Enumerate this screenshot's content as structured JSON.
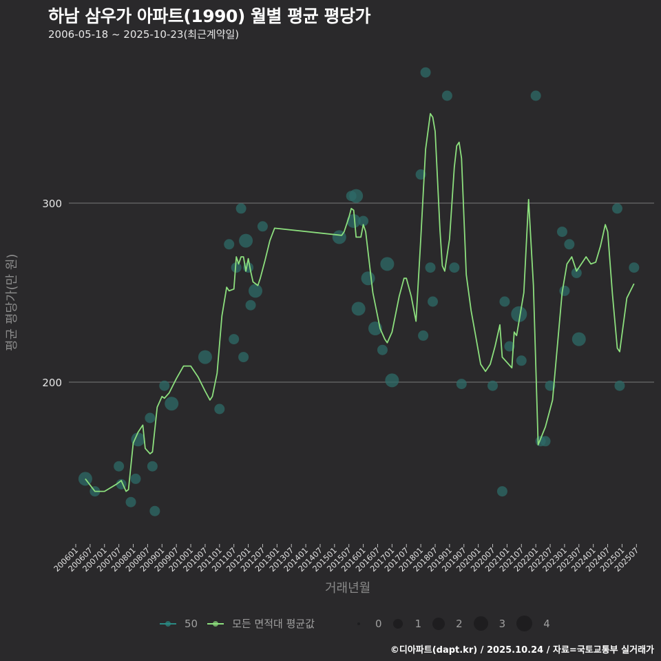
{
  "header": {
    "title": "하남 삼우가 아파트(1990) 월별 평균 평당가",
    "subtitle": "2006-05-18 ~ 2025-10-23(최근계약일)"
  },
  "axes": {
    "xlabel": "거래년월",
    "ylabel": "평균 평당가(만 원)"
  },
  "legend": {
    "series": [
      {
        "label": "50",
        "color": "#2a8a84"
      },
      {
        "label": "모든 면적대 평균값",
        "color": "#8de07e"
      }
    ],
    "sizes": [
      {
        "label": "0",
        "d": 4
      },
      {
        "label": "1",
        "d": 14
      },
      {
        "label": "2",
        "d": 18
      },
      {
        "label": "3",
        "d": 21
      },
      {
        "label": "4",
        "d": 23
      }
    ]
  },
  "caption": "©디아파트(dapt.kr) / 2025.10.24 / 자료=국토교통부 실거래가",
  "colors": {
    "background": "#2a292b",
    "grid": "#6b6b6b",
    "line": "#8de07e",
    "bubble": "#2e6b68"
  },
  "chart_data": {
    "type": "line",
    "title": "하남 삼우가 아파트(1990) 월별 평균 평당가",
    "subtitle": "2006-05-18 ~ 2025-10-23(최근계약일)",
    "xlabel": "거래년월",
    "ylabel": "평균 평당가(만 원)",
    "ylim": [
      100,
      380
    ],
    "yticks": [
      200,
      300
    ],
    "grid": true,
    "legend_position": "bottom",
    "x_ticks": [
      "200601",
      "200607",
      "200701",
      "200707",
      "200801",
      "200807",
      "200901",
      "200907",
      "201001",
      "201007",
      "201101",
      "201107",
      "201201",
      "201207",
      "201301",
      "201307",
      "201401",
      "201407",
      "201501",
      "201507",
      "201601",
      "201607",
      "201701",
      "201707",
      "201801",
      "201807",
      "201901",
      "201907",
      "202001",
      "202007",
      "202101",
      "202107",
      "202201",
      "202207",
      "202301",
      "202307",
      "202401",
      "202407",
      "202501",
      "202507"
    ],
    "series": [
      {
        "name": "모든 면적대 평균값",
        "points": [
          [
            "200605",
            146
          ],
          [
            "200609",
            139
          ],
          [
            "200701",
            139
          ],
          [
            "200706",
            143
          ],
          [
            "200708",
            145
          ],
          [
            "200710",
            139
          ],
          [
            "200711",
            140
          ],
          [
            "200801",
            166
          ],
          [
            "200803",
            172
          ],
          [
            "200805",
            176
          ],
          [
            "200806",
            163
          ],
          [
            "200808",
            160
          ],
          [
            "200809",
            161
          ],
          [
            "200811",
            186
          ],
          [
            "200901",
            192
          ],
          [
            "200902",
            191
          ],
          [
            "200904",
            194
          ],
          [
            "200907",
            202
          ],
          [
            "200910",
            209
          ],
          [
            "201001",
            209
          ],
          [
            "201004",
            203
          ],
          [
            "201007",
            195
          ],
          [
            "201009",
            190
          ],
          [
            "201010",
            192
          ],
          [
            "201012",
            205
          ],
          [
            "201102",
            237
          ],
          [
            "201104",
            253
          ],
          [
            "201105",
            251
          ],
          [
            "201107",
            252
          ],
          [
            "201108",
            270
          ],
          [
            "201109",
            266
          ],
          [
            "201110",
            270
          ],
          [
            "201111",
            270
          ],
          [
            "201112",
            262
          ],
          [
            "201201",
            269
          ],
          [
            "201202",
            262
          ],
          [
            "201203",
            256
          ],
          [
            "201205",
            254
          ],
          [
            "201206",
            258
          ],
          [
            "201208",
            268
          ],
          [
            "201210",
            279
          ],
          [
            "201212",
            286
          ],
          [
            "201504",
            282
          ],
          [
            "201505",
            284
          ],
          [
            "201507",
            292
          ],
          [
            "201508",
            297
          ],
          [
            "201509",
            296
          ],
          [
            "201510",
            281
          ],
          [
            "201512",
            281
          ],
          [
            "201601",
            288
          ],
          [
            "201602",
            284
          ],
          [
            "201605",
            250
          ],
          [
            "201608",
            230
          ],
          [
            "201610",
            224
          ],
          [
            "201611",
            222
          ],
          [
            "201701",
            228
          ],
          [
            "201704",
            248
          ],
          [
            "201706",
            258
          ],
          [
            "201707",
            258
          ],
          [
            "201709",
            248
          ],
          [
            "201711",
            234
          ],
          [
            "201801",
            280
          ],
          [
            "201803",
            330
          ],
          [
            "201805",
            350
          ],
          [
            "201806",
            348
          ],
          [
            "201807",
            340
          ],
          [
            "201809",
            285
          ],
          [
            "201810",
            265
          ],
          [
            "201811",
            262
          ],
          [
            "201901",
            280
          ],
          [
            "201903",
            320
          ],
          [
            "201904",
            332
          ],
          [
            "201905",
            334
          ],
          [
            "201906",
            325
          ],
          [
            "201908",
            260
          ],
          [
            "201910",
            240
          ],
          [
            "201912",
            225
          ],
          [
            "202002",
            210
          ],
          [
            "202004",
            206
          ],
          [
            "202006",
            210
          ],
          [
            "202008",
            220
          ],
          [
            "202010",
            232
          ],
          [
            "202011",
            214
          ],
          [
            "202103",
            208
          ],
          [
            "202104",
            228
          ],
          [
            "202105",
            226
          ],
          [
            "202108",
            250
          ],
          [
            "202110",
            302
          ],
          [
            "202112",
            254
          ],
          [
            "202202",
            165
          ],
          [
            "202205",
            175
          ],
          [
            "202208",
            190
          ],
          [
            "202212",
            250
          ],
          [
            "202302",
            266
          ],
          [
            "202304",
            270
          ],
          [
            "202306",
            262
          ],
          [
            "202308",
            266
          ],
          [
            "202310",
            270
          ],
          [
            "202312",
            266
          ],
          [
            "202402",
            267
          ],
          [
            "202404",
            276
          ],
          [
            "202406",
            288
          ],
          [
            "202407",
            284
          ],
          [
            "202409",
            249
          ],
          [
            "202411",
            219
          ],
          [
            "202412",
            217
          ],
          [
            "202503",
            247
          ],
          [
            "202506",
            255
          ]
        ]
      },
      {
        "name": "50",
        "bubbles": [
          [
            "200605",
            146,
            3
          ],
          [
            "200609",
            139,
            2
          ],
          [
            "200707",
            153,
            2
          ],
          [
            "200708",
            143,
            2
          ],
          [
            "200712",
            133,
            2
          ],
          [
            "200802",
            146,
            2
          ],
          [
            "200803",
            168,
            3
          ],
          [
            "200808",
            180,
            2
          ],
          [
            "200809",
            153,
            2
          ],
          [
            "200810",
            128,
            2
          ],
          [
            "200902",
            198,
            2
          ],
          [
            "200905",
            188,
            3
          ],
          [
            "201007",
            214,
            3
          ],
          [
            "201101",
            185,
            2
          ],
          [
            "201105",
            277,
            2
          ],
          [
            "201107",
            224,
            2
          ],
          [
            "201108",
            264,
            2
          ],
          [
            "201110",
            297,
            2
          ],
          [
            "201111",
            214,
            2
          ],
          [
            "201112",
            279,
            3
          ],
          [
            "201201",
            264,
            2
          ],
          [
            "201202",
            243,
            2
          ],
          [
            "201204",
            251,
            3
          ],
          [
            "201207",
            287,
            2
          ],
          [
            "201503",
            281,
            3
          ],
          [
            "201508",
            304,
            2
          ],
          [
            "201509",
            290,
            3
          ],
          [
            "201510",
            304,
            3
          ],
          [
            "201511",
            241,
            3
          ],
          [
            "201601",
            290,
            2
          ],
          [
            "201603",
            258,
            3
          ],
          [
            "201606",
            230,
            3
          ],
          [
            "201609",
            218,
            2
          ],
          [
            "201611",
            266,
            3
          ],
          [
            "201701",
            201,
            3
          ],
          [
            "201801",
            316,
            2
          ],
          [
            "201802",
            226,
            2
          ],
          [
            "201803",
            373,
            2
          ],
          [
            "201805",
            264,
            2
          ],
          [
            "201806",
            245,
            2
          ],
          [
            "201812",
            360,
            2
          ],
          [
            "201903",
            264,
            2
          ],
          [
            "201906",
            199,
            2
          ],
          [
            "202007",
            198,
            2
          ],
          [
            "202011",
            139,
            2
          ],
          [
            "202012",
            245,
            2
          ],
          [
            "202102",
            220,
            2
          ],
          [
            "202106",
            238,
            4
          ],
          [
            "202107",
            212,
            2
          ],
          [
            "202201",
            360,
            2
          ],
          [
            "202203",
            167,
            2
          ],
          [
            "202205",
            167,
            2
          ],
          [
            "202207",
            198,
            2
          ],
          [
            "202212",
            284,
            2
          ],
          [
            "202301",
            251,
            2
          ],
          [
            "202303",
            277,
            2
          ],
          [
            "202306",
            261,
            2
          ],
          [
            "202307",
            224,
            3
          ],
          [
            "202411",
            297,
            2
          ],
          [
            "202412",
            198,
            2
          ],
          [
            "202506",
            264,
            2
          ]
        ]
      }
    ]
  }
}
